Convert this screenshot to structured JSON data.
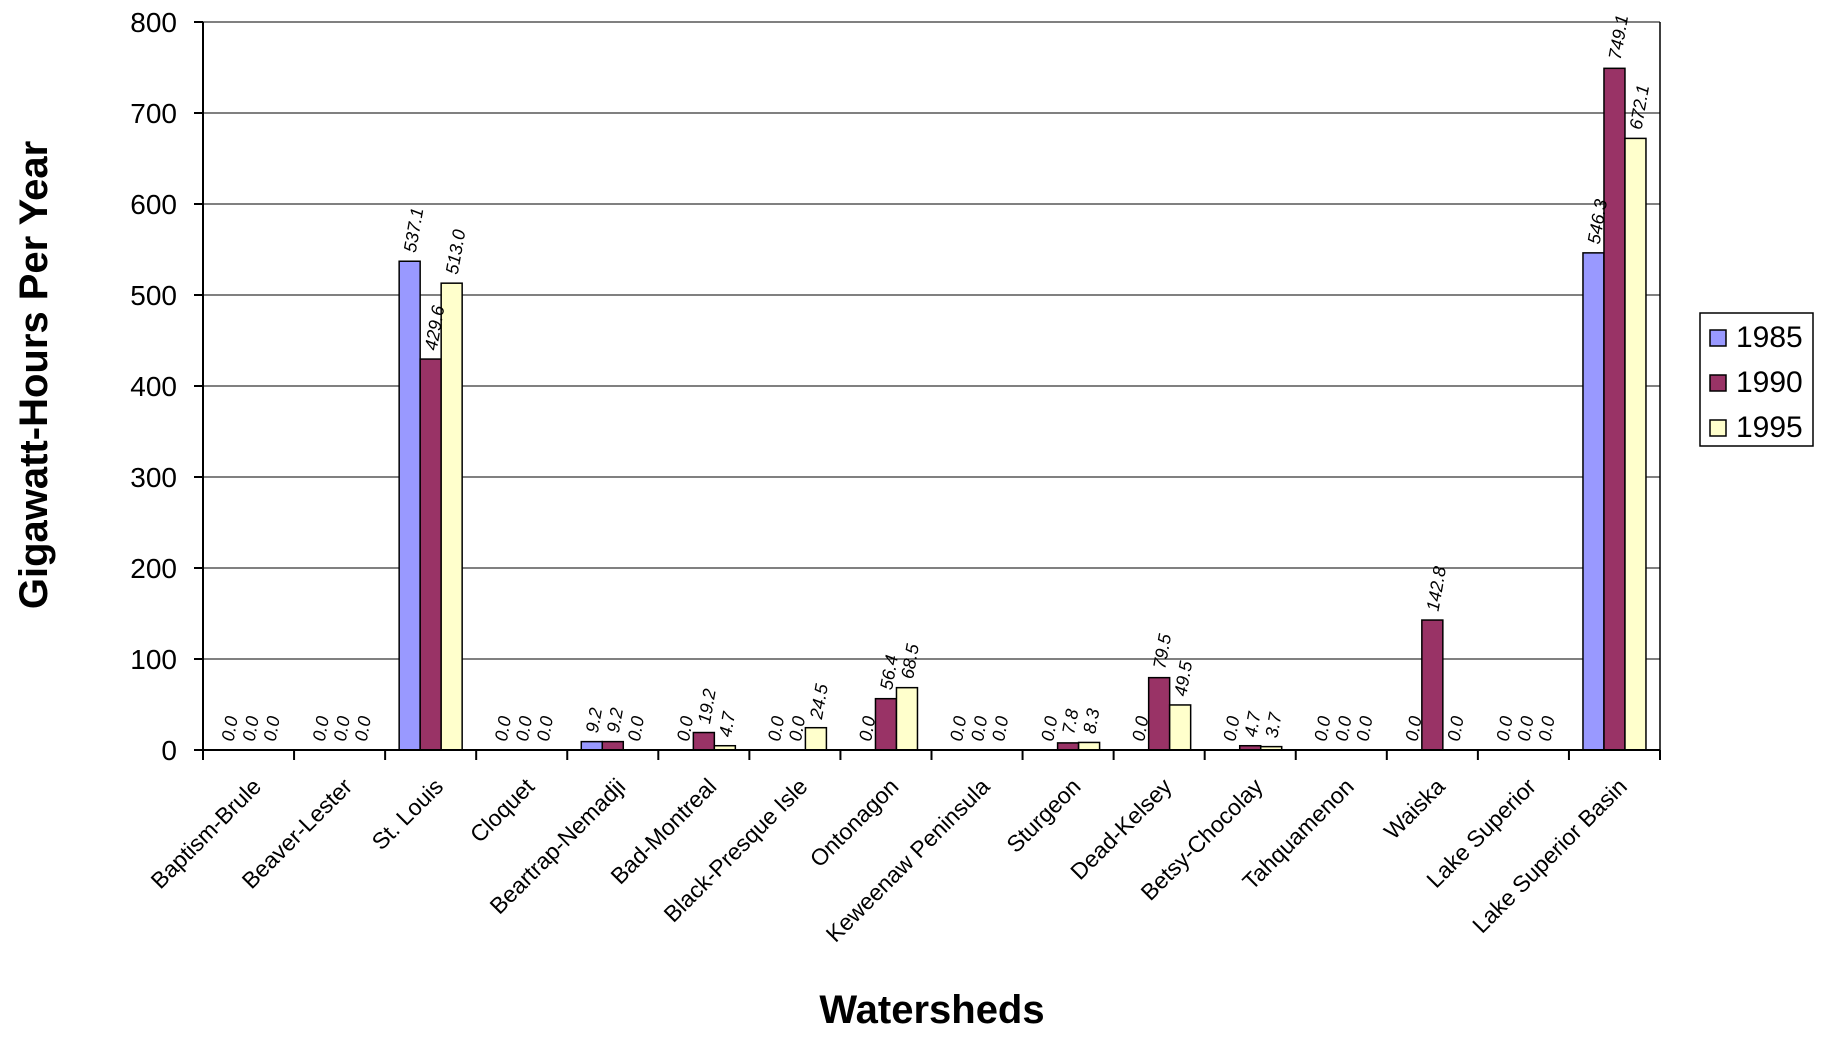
{
  "chart_data": {
    "type": "bar",
    "title": "",
    "xlabel": "Watersheds",
    "ylabel": "Gigawatt-Hours Per Year",
    "ylim": [
      0,
      800
    ],
    "yticks": [
      "0",
      "100",
      "200",
      "300",
      "400",
      "500",
      "600",
      "700",
      "800"
    ],
    "grid": true,
    "legend_position": "right",
    "categories": [
      "Baptism-Brule",
      "Beaver-Lester",
      "St. Louis",
      "Cloquet",
      "Beartrap-Nemadji",
      "Bad-Montreal",
      "Black-Presque Isle",
      "Ontonagon",
      "Keweenaw Peninsula",
      "Sturgeon",
      "Dead-Kelsey",
      "Betsy-Chocolay",
      "Tahquamenon",
      "Waiska",
      "Lake Superior",
      "Lake Superior Basin"
    ],
    "series": [
      {
        "name": "1985",
        "color": "#9999ff",
        "values": [
          0,
          0,
          537.1,
          0,
          9.2,
          0,
          0,
          0,
          0,
          0,
          0,
          0,
          0,
          0,
          0,
          546.3
        ],
        "labels": [
          "0.0",
          "0.0",
          "537.1",
          "0.0",
          "9.2",
          "0.0",
          "0.0",
          "0.0",
          "0.0",
          "0.0",
          "0.0",
          "0.0",
          "0.0",
          "0.0",
          "0.0",
          "546.3"
        ]
      },
      {
        "name": "1990",
        "color": "#993366",
        "values": [
          0,
          0,
          429.6,
          0,
          9.2,
          19.2,
          0,
          56.4,
          0,
          7.8,
          79.5,
          4.7,
          0,
          142.8,
          0,
          749.1
        ],
        "labels": [
          "0.0",
          "0.0",
          "429.6",
          "0.0",
          "9.2",
          "19.2",
          "0.0",
          "56.4",
          "0.0",
          "7.8",
          "79.5",
          "4.7",
          "0.0",
          "142.8",
          "0.0",
          "749.1"
        ]
      },
      {
        "name": "1995",
        "color": "#ffffcc",
        "values": [
          0,
          0,
          513.0,
          0,
          0,
          4.7,
          24.5,
          68.5,
          0,
          8.3,
          49.5,
          3.7,
          0,
          0,
          0,
          672.1
        ],
        "labels": [
          "0.0",
          "0.0",
          "513.0",
          "0.0",
          "0.0",
          "4.7",
          "24.5",
          "68.5",
          "0.0",
          "8.3",
          "49.5",
          "3.7",
          "0.0",
          "0.0",
          "0.0",
          "672.1"
        ]
      }
    ]
  }
}
